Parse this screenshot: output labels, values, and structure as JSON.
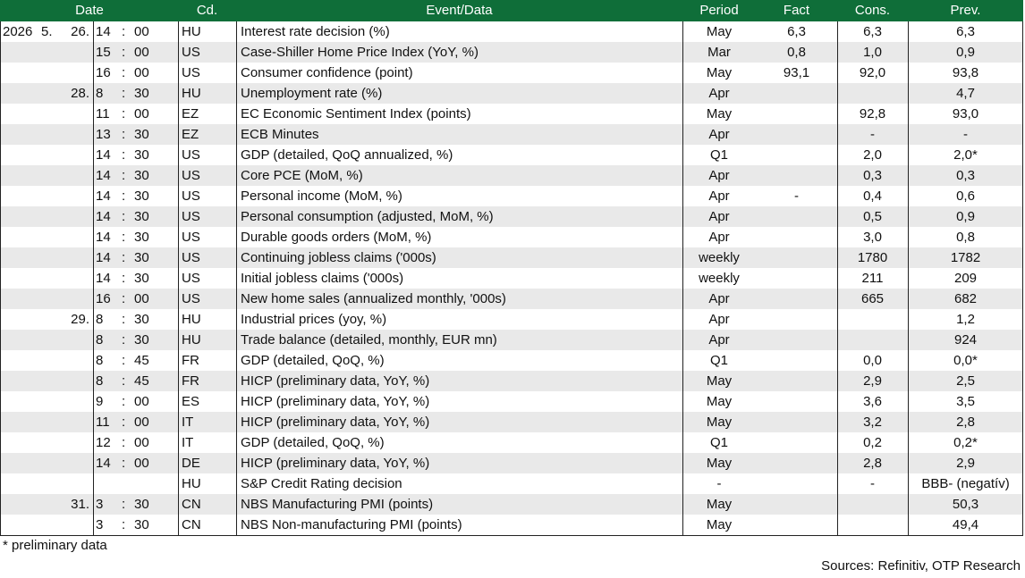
{
  "table": {
    "header": {
      "date": "Date",
      "code": "Cd.",
      "event": "Event/Data",
      "period": "Period",
      "fact": "Fact",
      "cons": "Cons.",
      "prev": "Prev."
    },
    "time_separator": ":",
    "rows": [
      [
        "2026",
        "5.",
        "26.",
        "14",
        "00",
        "HU",
        "Interest rate decision (%)",
        "May",
        "6,3",
        "6,3",
        "6,3"
      ],
      [
        null,
        null,
        null,
        "15",
        "00",
        "US",
        "Case-Shiller Home Price Index (YoY, %)",
        "Mar",
        "0,8",
        "1,0",
        "0,9"
      ],
      [
        null,
        null,
        null,
        "16",
        "00",
        "US",
        "Consumer confidence (point)",
        "May",
        "93,1",
        "92,0",
        "93,8"
      ],
      [
        null,
        null,
        "28.",
        "8",
        "30",
        "HU",
        "Unemployment rate (%)",
        "Apr",
        null,
        null,
        "4,7"
      ],
      [
        null,
        null,
        null,
        "11",
        "00",
        "EZ",
        "EC Economic Sentiment Index (points)",
        "May",
        null,
        "92,8",
        "93,0"
      ],
      [
        null,
        null,
        null,
        "13",
        "30",
        "EZ",
        "ECB Minutes",
        "Apr",
        null,
        "-",
        "-"
      ],
      [
        null,
        null,
        null,
        "14",
        "30",
        "US",
        "GDP (detailed, QoQ annualized, %)",
        "Q1",
        null,
        "2,0",
        "2,0*"
      ],
      [
        null,
        null,
        null,
        "14",
        "30",
        "US",
        "Core PCE (MoM, %)",
        "Apr",
        null,
        "0,3",
        "0,3"
      ],
      [
        null,
        null,
        null,
        "14",
        "30",
        "US",
        "Personal income (MoM, %)",
        "Apr",
        "-",
        "0,4",
        "0,6"
      ],
      [
        null,
        null,
        null,
        "14",
        "30",
        "US",
        "Personal consumption (adjusted, MoM, %)",
        "Apr",
        null,
        "0,5",
        "0,9"
      ],
      [
        null,
        null,
        null,
        "14",
        "30",
        "US",
        "Durable goods orders (MoM, %)",
        "Apr",
        null,
        "3,0",
        "0,8"
      ],
      [
        null,
        null,
        null,
        "14",
        "30",
        "US",
        "Continuing jobless claims ('000s)",
        "weekly",
        null,
        "1780",
        "1782"
      ],
      [
        null,
        null,
        null,
        "14",
        "30",
        "US",
        "Initial jobless claims ('000s)",
        "weekly",
        null,
        "211",
        "209"
      ],
      [
        null,
        null,
        null,
        "16",
        "00",
        "US",
        "New home sales (annualized monthly, '000s)",
        "Apr",
        null,
        "665",
        "682"
      ],
      [
        null,
        null,
        "29.",
        "8",
        "30",
        "HU",
        "Industrial prices (yoy, %)",
        "Apr",
        null,
        null,
        "1,2"
      ],
      [
        null,
        null,
        null,
        "8",
        "30",
        "HU",
        "Trade balance (detailed, monthly, EUR mn)",
        "Apr",
        null,
        null,
        "924"
      ],
      [
        null,
        null,
        null,
        "8",
        "45",
        "FR",
        "GDP (detailed, QoQ, %)",
        "Q1",
        null,
        "0,0",
        "0,0*"
      ],
      [
        null,
        null,
        null,
        "8",
        "45",
        "FR",
        "HICP (preliminary data, YoY, %)",
        "May",
        null,
        "2,9",
        "2,5"
      ],
      [
        null,
        null,
        null,
        "9",
        "00",
        "ES",
        "HICP (preliminary data, YoY, %)",
        "May",
        null,
        "3,6",
        "3,5"
      ],
      [
        null,
        null,
        null,
        "11",
        "00",
        "IT",
        "HICP (preliminary data, YoY, %)",
        "May",
        null,
        "3,2",
        "2,8"
      ],
      [
        null,
        null,
        null,
        "12",
        "00",
        "IT",
        "GDP (detailed, QoQ, %)",
        "Q1",
        null,
        "0,2",
        "0,2*"
      ],
      [
        null,
        null,
        null,
        "14",
        "00",
        "DE",
        "HICP (preliminary data, YoY, %)",
        "May",
        null,
        "2,8",
        "2,9"
      ],
      [
        null,
        null,
        null,
        null,
        null,
        "HU",
        "S&P Credit Rating decision",
        "-",
        null,
        "-",
        "BBB- (negatív)"
      ],
      [
        null,
        null,
        "31.",
        "3",
        "30",
        "CN",
        "NBS Manufacturing PMI (points)",
        "May",
        null,
        null,
        "50,3"
      ],
      [
        null,
        null,
        null,
        "3",
        "30",
        "CN",
        "NBS Non-manufacturing PMI (points)",
        "May",
        null,
        null,
        "49,4"
      ]
    ]
  },
  "footnote": "* preliminary data",
  "source": "Sources: Refinitiv, OTP Research"
}
